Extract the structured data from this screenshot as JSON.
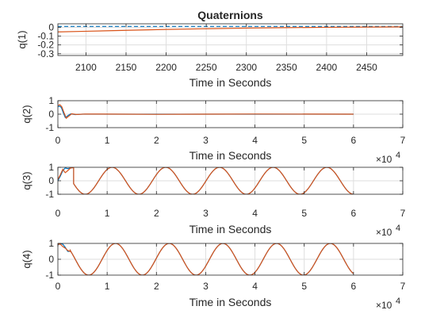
{
  "figure_title": "Quaternions",
  "colors": {
    "series_blue": "#0072bd",
    "series_orange": "#d95319",
    "grid": "#dedede",
    "axis": "#262626"
  },
  "chart_data": [
    {
      "type": "line",
      "title": "Quaternions",
      "ylabel": "q(1)",
      "xlabel": "Time in Seconds",
      "xlim": [
        2065,
        2495
      ],
      "ylim": [
        -0.32,
        0.04
      ],
      "xticks": [
        2100,
        2150,
        2200,
        2250,
        2300,
        2350,
        2400,
        2450
      ],
      "yticks": [
        0,
        -0.1,
        -0.2,
        -0.3
      ],
      "ytick_labels": [
        "0",
        "-0.1",
        "-0.2",
        "-0.3"
      ],
      "x_exponent": "",
      "grid": true,
      "series": [
        {
          "color": "#0072bd",
          "style": "dashed",
          "points": [
            [
              2065,
              0.01
            ],
            [
              2495,
              0.01
            ]
          ]
        },
        {
          "color": "#d95319",
          "style": "solid",
          "points": [
            [
              2065,
              -0.052
            ],
            [
              2100,
              -0.045
            ],
            [
              2150,
              -0.034
            ],
            [
              2200,
              -0.024
            ],
            [
              2250,
              -0.016
            ],
            [
              2300,
              -0.009
            ],
            [
              2350,
              -0.004
            ],
            [
              2400,
              0.0
            ],
            [
              2450,
              0.003
            ],
            [
              2495,
              0.005
            ]
          ]
        }
      ]
    },
    {
      "type": "line",
      "ylabel": "q(2)",
      "xlabel": "Time in Seconds",
      "xlim": [
        0,
        70000
      ],
      "ylim": [
        -1,
        1
      ],
      "xticks": [
        0,
        10000,
        20000,
        30000,
        40000,
        50000,
        60000,
        70000
      ],
      "xtick_labels": [
        "0",
        "1",
        "2",
        "3",
        "4",
        "5",
        "6",
        "7"
      ],
      "yticks": [
        1,
        0,
        -1
      ],
      "ytick_labels": [
        "1",
        "0",
        "-1"
      ],
      "x_exponent": "4",
      "grid": true,
      "series": [
        {
          "color": "#0072bd",
          "style": "solid",
          "points": [
            [
              0,
              0.55
            ],
            [
              300,
              0.6
            ],
            [
              700,
              0.5
            ],
            [
              1100,
              0.1
            ],
            [
              1500,
              -0.25
            ],
            [
              2000,
              -0.12
            ],
            [
              2600,
              0.02
            ],
            [
              3500,
              -0.03
            ],
            [
              5000,
              0.0
            ],
            [
              60000,
              0.0
            ]
          ]
        },
        {
          "color": "#d95319",
          "style": "solid",
          "points": [
            [
              0,
              0.65
            ],
            [
              400,
              0.7
            ],
            [
              800,
              0.55
            ],
            [
              1200,
              0.15
            ],
            [
              1700,
              -0.3
            ],
            [
              2200,
              -0.15
            ],
            [
              2800,
              0.03
            ],
            [
              3800,
              -0.02
            ],
            [
              5500,
              0.01
            ],
            [
              20000,
              -0.01
            ],
            [
              40000,
              0.01
            ],
            [
              60000,
              0.0
            ]
          ]
        }
      ]
    },
    {
      "type": "line",
      "ylabel": "q(3)",
      "xlabel": "Time in Seconds",
      "xlim": [
        0,
        70000
      ],
      "ylim": [
        -1,
        1
      ],
      "xticks": [
        0,
        10000,
        20000,
        30000,
        40000,
        50000,
        60000,
        70000
      ],
      "xtick_labels": [
        "0",
        "1",
        "2",
        "3",
        "4",
        "5",
        "6",
        "7"
      ],
      "yticks": [
        1,
        0,
        -1
      ],
      "ytick_labels": [
        "1",
        "0",
        "-1"
      ],
      "x_exponent": "4",
      "grid": true,
      "sine": {
        "period": 10900,
        "phase_zero": 11000,
        "amplitude": 1,
        "kind": "cos",
        "start": 3200,
        "end": 60000
      },
      "series": [
        {
          "color": "#0072bd",
          "style": "solid",
          "points": [
            [
              0,
              0.0
            ],
            [
              500,
              0.35
            ],
            [
              1000,
              0.75
            ],
            [
              1500,
              0.95
            ],
            [
              2000,
              0.9
            ],
            [
              2600,
              0.95
            ],
            [
              3200,
              0.98
            ]
          ]
        },
        {
          "color": "#d95319",
          "style": "solid",
          "points": [
            [
              0,
              0.1
            ],
            [
              500,
              0.45
            ],
            [
              1000,
              0.85
            ],
            [
              1500,
              0.6
            ],
            [
              2000,
              0.75
            ],
            [
              2600,
              0.95
            ],
            [
              3200,
              0.98
            ]
          ]
        }
      ]
    },
    {
      "type": "line",
      "ylabel": "q(4)",
      "xlabel": "Time in Seconds",
      "xlim": [
        0,
        70000
      ],
      "ylim": [
        -1,
        1
      ],
      "xticks": [
        0,
        10000,
        20000,
        30000,
        40000,
        50000,
        60000,
        70000
      ],
      "xtick_labels": [
        "0",
        "1",
        "2",
        "3",
        "4",
        "5",
        "6",
        "7"
      ],
      "yticks": [
        1,
        0,
        -1
      ],
      "ytick_labels": [
        "1",
        "0",
        "-1"
      ],
      "x_exponent": "4",
      "grid": true,
      "sine": {
        "period": 10900,
        "phase_zero": 11700,
        "amplitude": 1,
        "kind": "cos",
        "start": 2500,
        "end": 60000
      },
      "series": [
        {
          "color": "#0072bd",
          "style": "solid",
          "points": [
            [
              0,
              0.9
            ],
            [
              500,
              1.0
            ],
            [
              1000,
              0.95
            ],
            [
              1500,
              0.75
            ],
            [
              2000,
              0.5
            ],
            [
              2500,
              0.5
            ]
          ]
        },
        {
          "color": "#d95319",
          "style": "solid",
          "points": [
            [
              0,
              0.95
            ],
            [
              500,
              0.95
            ],
            [
              1000,
              0.8
            ],
            [
              1500,
              0.7
            ],
            [
              2000,
              0.55
            ],
            [
              2500,
              0.5
            ]
          ]
        }
      ]
    }
  ]
}
